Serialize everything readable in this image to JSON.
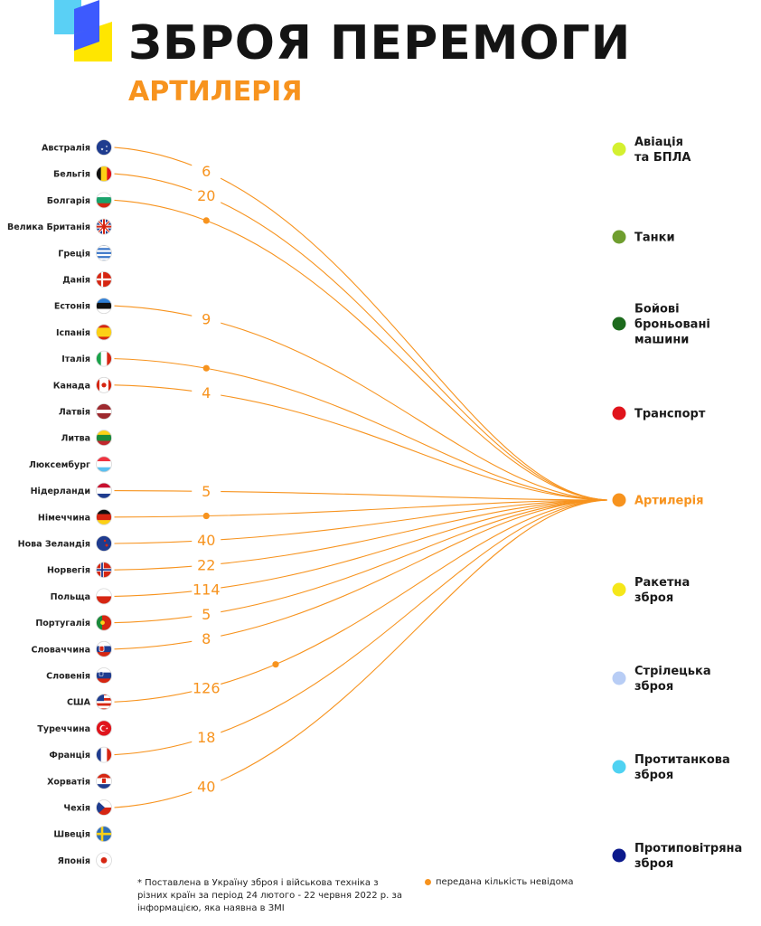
{
  "header": {
    "title": "ЗБРОЯ ПЕРЕМОГИ",
    "subtitle": "АРТИЛЕРІЯ"
  },
  "colors": {
    "accent": "#f7931e",
    "logo_blue": "#3d5afe",
    "logo_yellow": "#ffe600",
    "logo_cyan": "#5ad0f5"
  },
  "footnote": "* Поставлена в Україну зброя і військова техніка з різних країн за період 24 лютого - 22 червня 2022 р. за інформацією, яка наявна в ЗМІ",
  "legend": {
    "unknown_label": "передана кількість невідома"
  },
  "chart_data": {
    "type": "flow",
    "target": "Артилерія",
    "countries": [
      {
        "name": "Австралія",
        "flag": "australia",
        "value": "6"
      },
      {
        "name": "Бельгія",
        "flag": "belgium",
        "value": "20"
      },
      {
        "name": "Болгарія",
        "flag": "bulgaria",
        "value": "unknown"
      },
      {
        "name": "Велика Британія",
        "flag": "uk",
        "value": null
      },
      {
        "name": "Греція",
        "flag": "greece",
        "value": null
      },
      {
        "name": "Данія",
        "flag": "denmark",
        "value": null
      },
      {
        "name": "Естонія",
        "flag": "estonia",
        "value": "9"
      },
      {
        "name": "Іспанія",
        "flag": "spain",
        "value": null
      },
      {
        "name": "Італія",
        "flag": "italy",
        "value": "unknown"
      },
      {
        "name": "Канада",
        "flag": "canada",
        "value": "4"
      },
      {
        "name": "Латвія",
        "flag": "latvia",
        "value": null
      },
      {
        "name": "Литва",
        "flag": "lithuania",
        "value": null
      },
      {
        "name": "Люксембург",
        "flag": "luxembourg",
        "value": null
      },
      {
        "name": "Нідерланди",
        "flag": "netherlands",
        "value": "5"
      },
      {
        "name": "Німеччина",
        "flag": "germany",
        "value": "unknown"
      },
      {
        "name": "Нова Зеландія",
        "flag": "new-zealand",
        "value": "40"
      },
      {
        "name": "Норвегія",
        "flag": "norway",
        "value": "22"
      },
      {
        "name": "Польща",
        "flag": "poland",
        "value": "114"
      },
      {
        "name": "Португалія",
        "flag": "portugal",
        "value": "5"
      },
      {
        "name": "Словаччина",
        "flag": "slovakia",
        "value": "8"
      },
      {
        "name": "Словенія",
        "flag": "slovenia",
        "value": null
      },
      {
        "name": "США",
        "flag": "usa",
        "value": "126",
        "extra_unknown": true
      },
      {
        "name": "Туреччина",
        "flag": "turkey",
        "value": null
      },
      {
        "name": "Франція",
        "flag": "france",
        "value": "18"
      },
      {
        "name": "Хорватія",
        "flag": "croatia",
        "value": null
      },
      {
        "name": "Чехія",
        "flag": "czechia",
        "value": "40"
      },
      {
        "name": "Швеція",
        "flag": "sweden",
        "value": null
      },
      {
        "name": "Японія",
        "flag": "japan",
        "value": null
      }
    ],
    "categories": [
      {
        "label": "Авіація\nта БПЛА",
        "color": "#d4f030"
      },
      {
        "label": "Танки",
        "color": "#6f9e2f"
      },
      {
        "label": "Бойові\nброньовані\nмашини",
        "color": "#1d6b1d"
      },
      {
        "label": "Транспорт",
        "color": "#e0141c"
      },
      {
        "label": "Артилерія",
        "color": "#f7931e",
        "active": true
      },
      {
        "label": "Ракетна\nзброя",
        "color": "#f5e71a"
      },
      {
        "label": "Стрілецька\nзброя",
        "color": "#b8cdf5"
      },
      {
        "label": "Протитанкова\nзброя",
        "color": "#4fd2f2"
      },
      {
        "label": "Протиповітряна\nзброя",
        "color": "#0c1a8c"
      }
    ]
  }
}
